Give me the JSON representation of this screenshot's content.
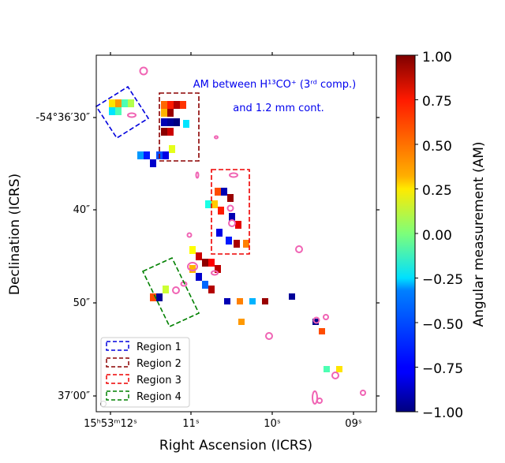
{
  "chart_data": {
    "type": "heatmap",
    "title": "",
    "annotation_line1": "AM between H¹³CO⁺ (3ʳᵈ comp.)",
    "annotation_line2": "and 1.2 mm cont.",
    "xlabel": "Right Ascension (ICRS)",
    "ylabel": "Declination (ICRS)",
    "x_ticks": [
      "15ʰ53ᵐ12ˢ",
      "11ˢ",
      "10ˢ",
      "09ˢ"
    ],
    "y_ticks": [
      "-54°36′30″",
      "40″",
      "50″",
      "37′00″"
    ],
    "colorbar": {
      "label": "Angular measurement (AM)",
      "range": [
        -1.0,
        1.0
      ],
      "ticks": [
        "1.00",
        "0.75",
        "0.50",
        "0.25",
        "0.00",
        "−0.25",
        "−0.50",
        "−0.75",
        "−1.00"
      ],
      "colormap": "jet"
    },
    "legend": {
      "placement": "lower-left",
      "entries": [
        {
          "label": "Region 1",
          "color": "#0000dd"
        },
        {
          "label": "Region 2",
          "color": "#8b0000"
        },
        {
          "label": "Region 3",
          "color": "#ee0000"
        },
        {
          "label": "Region 4",
          "color": "#008000"
        }
      ]
    },
    "pixel_values": [
      0.3,
      0.45,
      -0.1,
      0.1,
      -0.3,
      -0.1,
      0.55,
      0.7,
      0.9,
      0.65,
      0.4,
      0.95,
      -0.9,
      -0.95,
      -1.0,
      -0.3,
      0.98,
      0.85,
      -0.45,
      -0.7,
      -0.6,
      -0.8,
      0.2,
      -0.85,
      0.6,
      -0.9,
      0.95,
      -0.2,
      0.35,
      0.7,
      -0.9,
      0.8,
      -0.8,
      -0.7,
      0.92,
      0.5,
      0.25,
      0.85,
      0.97,
      0.75,
      0.4,
      0.88,
      -0.85,
      -0.55,
      0.9,
      0.6,
      -0.95,
      0.15,
      -0.9,
      0.5,
      -0.4,
      0.95,
      0.45,
      -0.95,
      -0.98,
      0.6,
      -0.1,
      0.3
    ]
  }
}
